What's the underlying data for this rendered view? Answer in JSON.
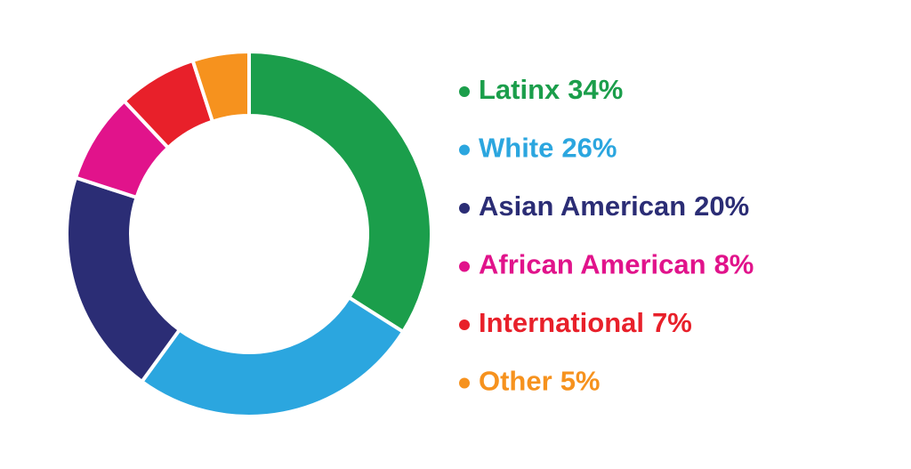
{
  "chart_data": {
    "type": "pie",
    "categories": [
      "Latinx",
      "White",
      "Asian American",
      "African American",
      "International",
      "Other"
    ],
    "values": [
      34,
      26,
      20,
      8,
      7,
      5
    ],
    "value_labels": [
      "34%",
      "26%",
      "20%",
      "8%",
      "7%",
      "5%"
    ],
    "colors": [
      "#1b9e4b",
      "#2ba6df",
      "#2b2d75",
      "#e1138b",
      "#e8202a",
      "#f6921e"
    ],
    "donut": true,
    "legend": "right"
  }
}
